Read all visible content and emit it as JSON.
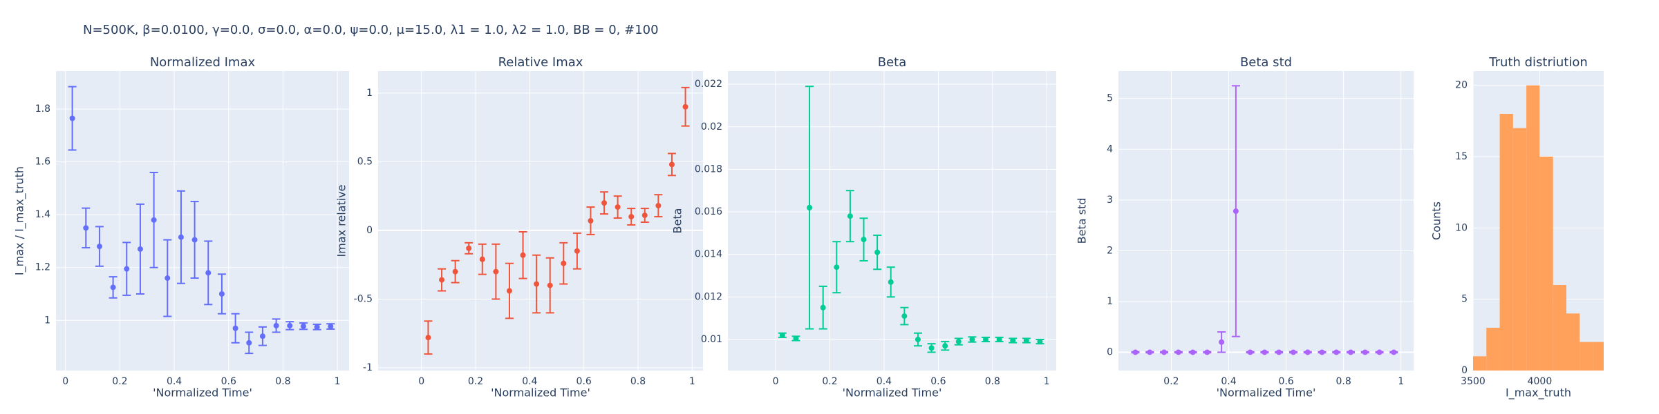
{
  "title": "N=500K, β=0.0100, γ=0.0, σ=0.0,  α=0.0, ψ=0.0, μ=15.0, λ1 = 1.0, λ2 = 1.0, BB = 0, #100",
  "chart_data": [
    {
      "type": "errorscatter",
      "title": "Normalized Imax",
      "xlabel": "'Normalized Time'",
      "ylabel": "I_max / I_max_truth",
      "color": "#636efa",
      "x": [
        0.025,
        0.075,
        0.125,
        0.175,
        0.225,
        0.275,
        0.325,
        0.375,
        0.425,
        0.475,
        0.525,
        0.575,
        0.625,
        0.675,
        0.725,
        0.775,
        0.825,
        0.875,
        0.925,
        0.975
      ],
      "values": [
        1.765,
        1.35,
        1.28,
        1.125,
        1.195,
        1.27,
        1.38,
        1.16,
        1.315,
        1.305,
        1.18,
        1.1,
        0.97,
        0.915,
        0.94,
        0.98,
        0.98,
        0.978,
        0.975,
        0.977
      ],
      "errors": [
        0.12,
        0.075,
        0.075,
        0.04,
        0.1,
        0.17,
        0.18,
        0.145,
        0.175,
        0.145,
        0.12,
        0.075,
        0.055,
        0.04,
        0.035,
        0.025,
        0.015,
        0.012,
        0.01,
        0.01
      ],
      "xlim": [
        -0.035,
        1.043
      ],
      "ylim": [
        0.81,
        1.944
      ],
      "xticks": [
        0,
        0.2,
        0.4,
        0.6,
        0.8,
        1
      ],
      "yticks": [
        1,
        1.2,
        1.4,
        1.6,
        1.8
      ],
      "grid": true
    },
    {
      "type": "errorscatter",
      "title": "Relative Imax",
      "xlabel": "'Normalized Time'",
      "ylabel": "Imax relative",
      "color": "#EF553B",
      "x": [
        0.025,
        0.075,
        0.125,
        0.175,
        0.225,
        0.275,
        0.325,
        0.375,
        0.425,
        0.475,
        0.525,
        0.575,
        0.625,
        0.675,
        0.725,
        0.775,
        0.825,
        0.875,
        0.925,
        0.975
      ],
      "values": [
        -0.78,
        -0.36,
        -0.3,
        -0.13,
        -0.21,
        -0.3,
        -0.44,
        -0.18,
        -0.39,
        -0.4,
        -0.24,
        -0.15,
        0.07,
        0.2,
        0.17,
        0.1,
        0.11,
        0.18,
        0.48,
        0.9
      ],
      "errors": [
        0.12,
        0.08,
        0.08,
        0.04,
        0.11,
        0.2,
        0.2,
        0.17,
        0.21,
        0.2,
        0.15,
        0.13,
        0.1,
        0.08,
        0.08,
        0.06,
        0.05,
        0.08,
        0.08,
        0.14
      ],
      "xlim": [
        -0.16,
        1.04
      ],
      "ylim": [
        -1.02,
        1.16
      ],
      "xticks": [
        0,
        0.2,
        0.4,
        0.6,
        0.8,
        1
      ],
      "yticks": [
        -1,
        -0.5,
        0,
        0.5,
        1
      ],
      "grid": true
    },
    {
      "type": "errorscatter",
      "title": "Beta",
      "xlabel": "'Normalized Time'",
      "ylabel": "Beta",
      "color": "#00cc96",
      "x": [
        0.025,
        0.075,
        0.125,
        0.175,
        0.225,
        0.275,
        0.325,
        0.375,
        0.425,
        0.475,
        0.525,
        0.575,
        0.625,
        0.675,
        0.725,
        0.775,
        0.825,
        0.875,
        0.925,
        0.975
      ],
      "values": [
        0.0102,
        0.01005,
        0.0162,
        0.0115,
        0.0134,
        0.0158,
        0.0147,
        0.0141,
        0.0127,
        0.0111,
        0.01,
        0.0096,
        0.0097,
        0.0099,
        0.01,
        0.01,
        0.01,
        0.00995,
        0.00995,
        0.0099
      ],
      "errors": [
        0.0001,
        0.0001,
        0.0057,
        0.001,
        0.0012,
        0.0012,
        0.001,
        0.0008,
        0.0007,
        0.0004,
        0.0003,
        0.0002,
        0.0002,
        0.00015,
        0.00012,
        0.0001,
        0.0001,
        0.0001,
        0.0001,
        0.0001
      ],
      "xlim": [
        -0.176,
        1.035
      ],
      "ylim": [
        0.00854,
        0.02262
      ],
      "xticks": [
        0,
        0.2,
        0.4,
        0.6,
        0.8,
        1
      ],
      "yticks": [
        0.01,
        0.012,
        0.014,
        0.016,
        0.018,
        0.02,
        0.022
      ],
      "grid": true
    },
    {
      "type": "errorscatter",
      "title": "Beta std",
      "xlabel": "'Normalized Time'",
      "ylabel": "Beta std",
      "color": "#ab63fa",
      "x": [
        0.075,
        0.125,
        0.175,
        0.225,
        0.275,
        0.325,
        0.375,
        0.425,
        0.475,
        0.525,
        0.575,
        0.625,
        0.675,
        0.725,
        0.775,
        0.825,
        0.875,
        0.925,
        0.975
      ],
      "values": [
        0,
        0,
        0,
        0,
        0,
        0,
        0.2,
        2.78,
        0,
        0,
        0,
        0,
        0,
        0,
        0,
        0,
        0,
        0,
        0
      ],
      "errors": [
        0.01,
        0.01,
        0.01,
        0.01,
        0.01,
        0.01,
        0.2,
        2.47,
        0.01,
        0.01,
        0.01,
        0.01,
        0.01,
        0.01,
        0.01,
        0.01,
        0.01,
        0.01,
        0.01
      ],
      "xlim": [
        0.016,
        1.044
      ],
      "ylim": [
        -0.36,
        5.54
      ],
      "xticks": [
        0.2,
        0.4,
        0.6,
        0.8,
        1
      ],
      "yticks": [
        0,
        1,
        2,
        3,
        4,
        5
      ],
      "grid": true
    },
    {
      "type": "histogram",
      "title": "Truth distriution",
      "xlabel": "I_max_truth",
      "ylabel": "Counts",
      "color": "#FFA15A",
      "bins": [
        3500,
        3600,
        3700,
        3800,
        3900,
        4000,
        4100,
        4200,
        4300,
        4400,
        4500
      ],
      "values": [
        1,
        3,
        18,
        17,
        20,
        15,
        6,
        4,
        2,
        2
      ],
      "xlim": [
        3500,
        4480
      ],
      "ylim": [
        0,
        21
      ],
      "xticks": [
        3500,
        4000
      ],
      "yticks": [
        0,
        5,
        10,
        15,
        20
      ],
      "grid": true
    }
  ]
}
